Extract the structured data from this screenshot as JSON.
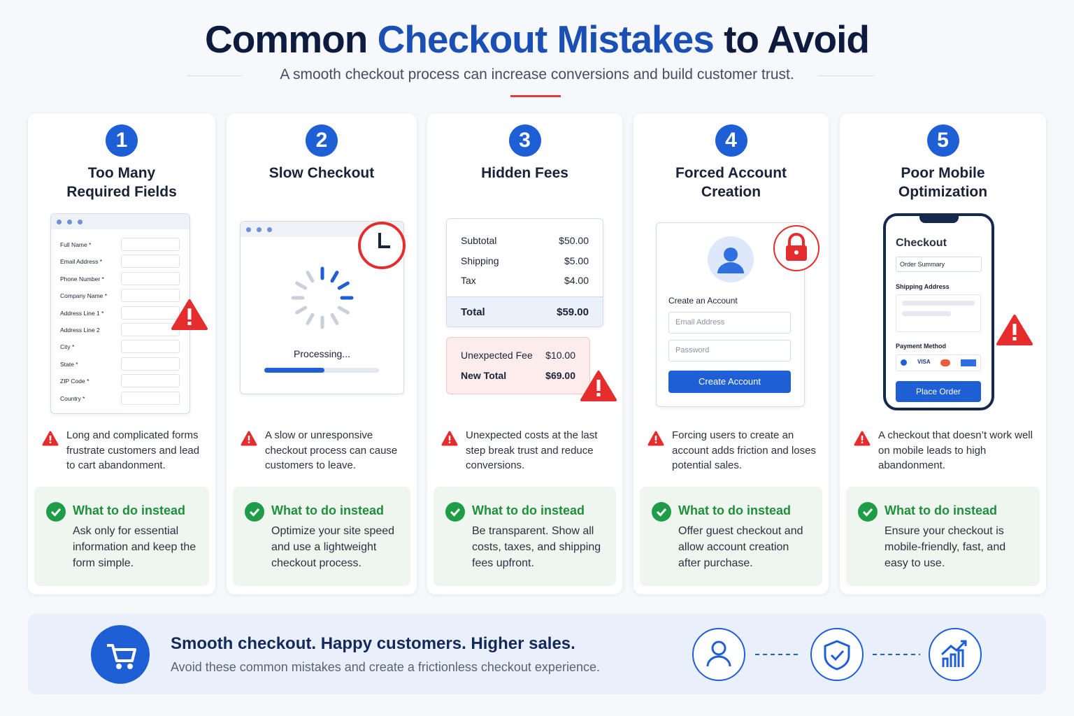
{
  "header": {
    "title_start": "Common",
    "title_highlight": "Checkout Mistakes",
    "title_end": "to Avoid",
    "subtitle": "A smooth checkout process can increase conversions and build customer trust."
  },
  "cards": [
    {
      "number": 1,
      "title": "Too Many Required Fields",
      "illustration": {
        "fields": [
          "Full Name *",
          "Email Address *",
          "Phone Number *",
          "Company Name *",
          "Address Line 1 *",
          "Address Line 2",
          "City *",
          "State *",
          "ZIP Code *",
          "Country *"
        ]
      },
      "problem": "Long and complicated forms frustrate customers and lead to cart abandonment.",
      "fix_heading": "What to do instead",
      "fix": "Ask only for essential information and keep the form simple."
    },
    {
      "number": 2,
      "title": "Slow Checkout",
      "illustration": {
        "status": "Processing..."
      },
      "problem": "A slow or unresponsive checkout process can cause customers to leave.",
      "fix_heading": "What to do instead",
      "fix": "Optimize your site speed and use a lightweight checkout process."
    },
    {
      "number": 3,
      "title": "Hidden Fees",
      "illustration": {
        "rows": [
          [
            "Subtotal",
            "$50.00"
          ],
          [
            "Shipping",
            "$5.00"
          ],
          [
            "Tax",
            "$4.00"
          ]
        ],
        "total": [
          "Total",
          "$59.00"
        ],
        "fee": [
          "Unexpected Fee",
          "$10.00"
        ],
        "new_total": [
          "New Total",
          "$69.00"
        ]
      },
      "problem": "Unexpected costs at the last step break trust and reduce conversions.",
      "fix_heading": "What to do instead",
      "fix": "Be transparent. Show all costs, taxes, and shipping fees upfront."
    },
    {
      "number": 4,
      "title": "Forced Account Creation",
      "illustration": {
        "heading": "Create an Account",
        "email": "Email Address",
        "password": "Password",
        "button": "Create Account"
      },
      "problem": "Forcing users to create an account adds friction and loses potential sales.",
      "fix_heading": "What to do instead",
      "fix": "Offer guest checkout and allow account creation after purchase."
    },
    {
      "number": 5,
      "title": "Poor Mobile Optimization",
      "illustration": {
        "heading": "Checkout",
        "select": "Order Summary",
        "shipping": "Shipping Address",
        "payment": "Payment Method",
        "card": "VISA",
        "button": "Place Order"
      },
      "problem": "A checkout that doesn’t work well on mobile leads to high abandonment.",
      "fix_heading": "What to do instead",
      "fix": "Ensure your checkout is mobile-friendly, fast, and easy to use."
    }
  ],
  "footer": {
    "headline": "Smooth checkout. Happy customers. Higher sales.",
    "text": "Avoid these common mistakes and create a frictionless checkout experience."
  }
}
